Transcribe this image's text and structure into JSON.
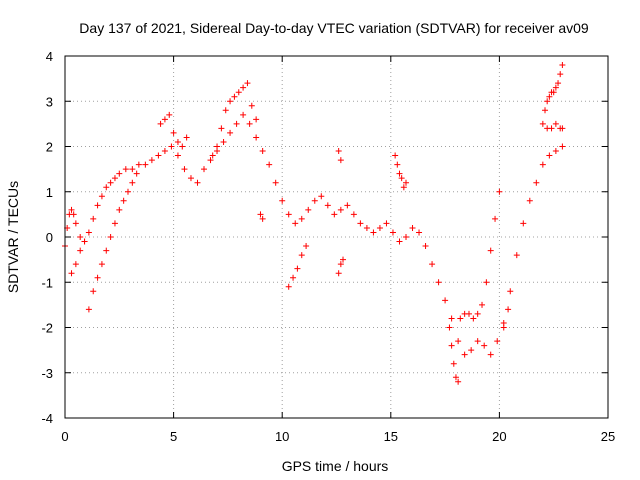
{
  "chart_data": {
    "type": "scatter",
    "title": "Day 137 of 2021, Sidereal Day-to-day VTEC variation (SDTVAR) for receiver av09",
    "xlabel": "GPS time / hours",
    "ylabel": "SDTVAR / TECUs",
    "xlim": [
      0,
      25
    ],
    "ylim": [
      -4,
      4
    ],
    "x_ticks": [
      0,
      5,
      10,
      15,
      20,
      25
    ],
    "y_ticks": [
      -4,
      -3,
      -2,
      -1,
      0,
      1,
      2,
      3,
      4
    ],
    "grid": true,
    "marker": "+",
    "color": "#ff0000",
    "series": [
      {
        "x": [
          0.0,
          0.1,
          0.2,
          0.3,
          0.4,
          0.5,
          0.7,
          0.9,
          1.1,
          1.3,
          1.5,
          1.7,
          1.9,
          2.1,
          2.3,
          2.5,
          2.8,
          3.1,
          3.4,
          3.7,
          4.0,
          4.3,
          4.6,
          4.9,
          5.2,
          5.5,
          5.8,
          6.1,
          6.4,
          6.7,
          7.0,
          7.3,
          7.6,
          7.9,
          8.2,
          8.5,
          8.8,
          9.1,
          9.4,
          9.7,
          10.0,
          10.3,
          10.6,
          10.9,
          11.2,
          11.5,
          11.8,
          12.1,
          12.4,
          12.7,
          13.0,
          13.3,
          13.6,
          13.9,
          14.2,
          14.5,
          14.8,
          15.1,
          15.4,
          15.7,
          16.0,
          16.3,
          16.6,
          16.9,
          17.2,
          17.5,
          17.8,
          18.1,
          18.4,
          18.7,
          19.0,
          19.3,
          19.6,
          19.9,
          20.2,
          20.5,
          20.8,
          21.1,
          21.4,
          21.7,
          22.0,
          22.3,
          22.6,
          22.9
        ],
        "y": [
          -0.2,
          0.2,
          0.5,
          0.6,
          0.5,
          0.3,
          0.0,
          -0.1,
          0.1,
          0.4,
          0.7,
          0.9,
          1.1,
          1.2,
          1.3,
          1.4,
          1.5,
          1.5,
          1.6,
          1.6,
          1.7,
          1.8,
          1.9,
          2.0,
          1.8,
          1.5,
          1.3,
          1.2,
          1.5,
          1.7,
          1.9,
          2.1,
          2.3,
          2.5,
          2.7,
          2.5,
          2.2,
          1.9,
          1.6,
          1.2,
          0.8,
          0.5,
          0.3,
          0.4,
          0.6,
          0.8,
          0.9,
          0.7,
          0.5,
          0.6,
          0.7,
          0.5,
          0.3,
          0.2,
          0.1,
          0.2,
          0.3,
          0.1,
          -0.1,
          0.0,
          0.2,
          0.1,
          -0.2,
          -0.6,
          -1.0,
          -1.4,
          -1.8,
          -2.3,
          -2.6,
          -2.5,
          -2.3,
          -2.4,
          -2.6,
          -2.3,
          -1.9,
          -1.2,
          -0.4,
          0.3,
          0.8,
          1.2,
          1.6,
          1.8,
          1.9,
          2.0
        ]
      },
      {
        "x": [
          0.3,
          0.5,
          0.7,
          0.9,
          1.1,
          1.3,
          1.5,
          1.7,
          1.9,
          2.1,
          2.3,
          2.5,
          2.7,
          2.9,
          3.1,
          3.3
        ],
        "y": [
          -0.8,
          -0.6,
          -0.3,
          -0.1,
          -1.6,
          -1.2,
          -0.9,
          -0.6,
          -0.3,
          0.0,
          0.3,
          0.6,
          0.8,
          1.0,
          1.2,
          1.4
        ]
      },
      {
        "x": [
          4.4,
          4.6,
          4.8,
          5.0,
          5.2,
          5.4,
          5.6,
          6.8,
          7.0,
          7.2,
          7.4,
          7.6,
          7.8,
          8.0,
          8.2,
          8.4,
          8.6,
          8.8
        ],
        "y": [
          2.5,
          2.6,
          2.7,
          2.3,
          2.1,
          2.0,
          2.2,
          1.8,
          2.0,
          2.4,
          2.8,
          3.0,
          3.1,
          3.2,
          3.3,
          3.4,
          2.9,
          2.6
        ]
      },
      {
        "x": [
          9.0,
          9.1,
          10.3,
          10.5,
          10.7,
          10.9,
          11.1,
          12.6,
          12.7,
          12.8,
          12.6,
          12.7,
          15.2,
          15.3,
          15.4,
          15.5,
          15.6,
          15.7
        ],
        "y": [
          0.5,
          0.4,
          -1.1,
          -0.9,
          -0.7,
          -0.4,
          -0.2,
          -0.8,
          -0.6,
          -0.5,
          1.9,
          1.7,
          1.8,
          1.6,
          1.4,
          1.3,
          1.1,
          1.2
        ]
      },
      {
        "x": [
          17.7,
          17.8,
          17.9,
          18.0,
          18.1,
          18.2,
          18.4,
          18.6,
          18.8,
          19.0,
          19.2,
          19.4,
          19.6,
          19.8,
          20.0,
          20.2,
          20.4
        ],
        "y": [
          -2.0,
          -2.4,
          -2.8,
          -3.1,
          -3.2,
          -1.8,
          -1.7,
          -1.7,
          -1.8,
          -1.7,
          -1.5,
          -1.0,
          -0.3,
          0.4,
          1.0,
          -2.0,
          -1.6
        ]
      },
      {
        "x": [
          22.0,
          22.1,
          22.2,
          22.3,
          22.4,
          22.5,
          22.6,
          22.7,
          22.8,
          22.9,
          22.2,
          22.4,
          22.6,
          22.8,
          22.9
        ],
        "y": [
          2.5,
          2.8,
          3.0,
          3.1,
          3.2,
          3.2,
          3.3,
          3.4,
          3.6,
          3.8,
          2.4,
          2.4,
          2.5,
          2.4,
          2.4
        ]
      }
    ]
  }
}
